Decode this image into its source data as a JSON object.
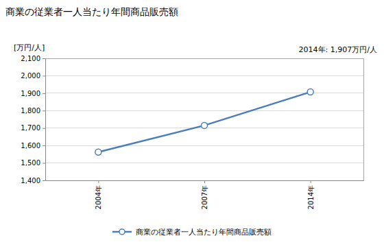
{
  "chart_data": {
    "type": "line",
    "title": "商業の従業者一人当たり年間商品販売額",
    "y_label": "[万円/人]",
    "annotation": "2014年: 1,907万円/人",
    "categories": [
      "2004年",
      "2007年",
      "2014年"
    ],
    "series": [
      {
        "name": "商業の従業者一人当たり年間商品販売額",
        "color": "#4a7ebb",
        "marker": "circle",
        "values": [
          1562,
          1715,
          1907
        ]
      }
    ],
    "ylim": [
      1400,
      2100
    ],
    "yticks": [
      {
        "value": 1400,
        "label": "1,400"
      },
      {
        "value": 1500,
        "label": "1,500"
      },
      {
        "value": 1600,
        "label": "1,600"
      },
      {
        "value": 1700,
        "label": "1,700"
      },
      {
        "value": 1800,
        "label": "1,800"
      },
      {
        "value": 1900,
        "label": "1,900"
      },
      {
        "value": 2000,
        "label": "2,000"
      },
      {
        "value": 2100,
        "label": "2,100"
      }
    ],
    "grid": true,
    "legend": "bottom"
  }
}
